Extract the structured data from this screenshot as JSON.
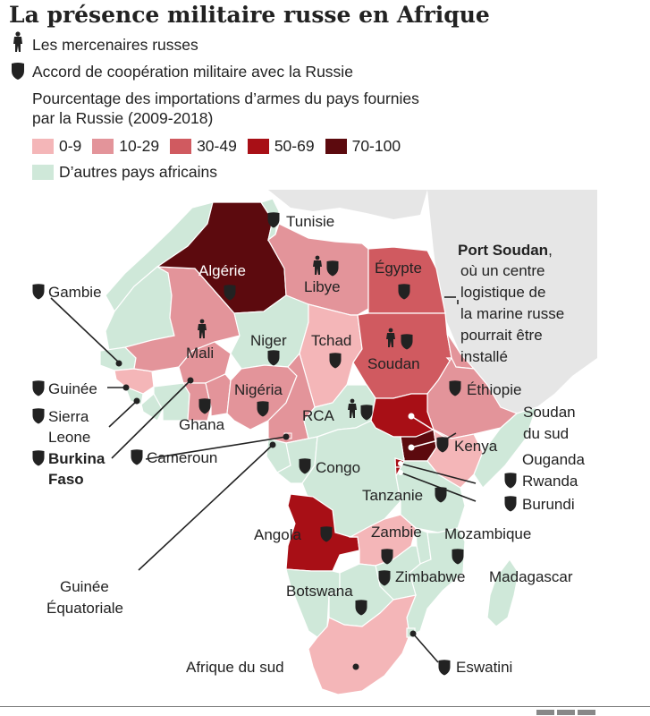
{
  "title": "La présence militaire russe en Afrique",
  "legend": {
    "mercenaries": "Les mercenaires russes",
    "cooperation": "Accord de coopération militaire avec la Russie",
    "imports_line1": "Pourcentage des importations d’armes du pays fournies",
    "imports_line2": "par la Russie (2009-2018)",
    "bins": [
      {
        "label": "0-9",
        "color": "#f4b6b8"
      },
      {
        "label": "10-29",
        "color": "#e3949a"
      },
      {
        "label": "30-49",
        "color": "#d05a60"
      },
      {
        "label": "50-69",
        "color": "#a80f16"
      },
      {
        "label": "70-100",
        "color": "#5c0a0e"
      }
    ],
    "other_label": "D’autres pays africains",
    "other_color": "#cfe8d9"
  },
  "icons": {
    "mercenary": "mercenary-soldier-icon",
    "shield": "shield-icon"
  },
  "countries": {
    "algerie": "Algérie",
    "tunisie": "Tunisie",
    "libye": "Libye",
    "egypte": "Égypte",
    "mali": "Mali",
    "niger": "Niger",
    "tchad": "Tchad",
    "soudan": "Soudan",
    "gambie": "Gambie",
    "guinee": "Guinée",
    "sierra_leone_1": "Sierra",
    "sierra_leone_2": "Leone",
    "burkina_1": "Burkina",
    "burkina_2": "Faso",
    "ghana": "Ghana",
    "nigeria": "Nigéria",
    "cameroun": "Cameroun",
    "rca": "RCA",
    "ethiopie": "Éthiopie",
    "soudan_du_sud_1": "Soudan",
    "soudan_du_sud_2": "du sud",
    "kenya": "Kenya",
    "ouganda": "Ouganda",
    "rwanda": "Rwanda",
    "burundi": "Burundi",
    "congo": "Congo",
    "tanzanie": "Tanzanie",
    "angola": "Angola",
    "zambie": "Zambie",
    "mozambique": "Mozambique",
    "zimbabwe": "Zimbabwe",
    "madagascar": "Madagascar",
    "guinee_eq_1": "Guinée",
    "guinee_eq_2": "Équatoriale",
    "botswana": "Botswana",
    "afrique_du_sud": "Afrique du sud",
    "eswatini": "Eswatini"
  },
  "port_soudan": {
    "name": "Port Soudan",
    "suffix": ",",
    "line2": "où un centre",
    "line3": "logistique de",
    "line4": "la marine russe",
    "line5": "pourrait être",
    "line6": "installé"
  }
}
